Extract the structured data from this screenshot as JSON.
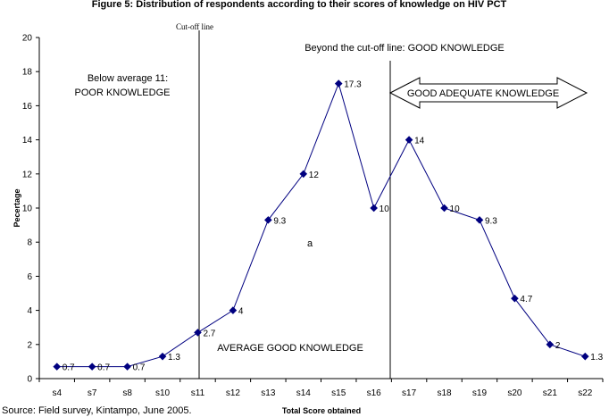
{
  "chart_data": {
    "type": "line",
    "title": "Figure 5: Distribution of respondents according to their scores of knowledge on HIV PCT",
    "xlabel": "Total Score obtained",
    "ylabel": "Pecertage",
    "ylim": [
      0,
      20
    ],
    "y_ticks": [
      "0",
      "2",
      "4",
      "6",
      "8",
      "10",
      "12",
      "14",
      "16",
      "18",
      "20"
    ],
    "categories": [
      "s4",
      "s7",
      "s8",
      "s10",
      "s11",
      "s12",
      "s13",
      "s14",
      "s15",
      "s16",
      "s17",
      "s18",
      "s19",
      "s20",
      "s21",
      "s22"
    ],
    "series": [
      {
        "name": "Percentage",
        "values": [
          0.7,
          0.7,
          0.7,
          1.3,
          2.7,
          4,
          9.3,
          12,
          17.3,
          10,
          14,
          10,
          9.3,
          4.7,
          2,
          1.3
        ],
        "labels": [
          "0.7",
          "0.7",
          "0.7",
          "1.3",
          "2.7",
          "4",
          "9.3",
          "12",
          "17.3",
          "10",
          "14",
          "10",
          "9.3",
          "4.7",
          "2",
          "1.3"
        ],
        "color": "#000080"
      }
    ],
    "grid": false,
    "cutoff_line_label": "Cut-off line",
    "annotations": {
      "below_line1": "Below average 11:",
      "below_line2": "POOR KNOWLEDGE",
      "beyond": "Beyond the cut-off line: GOOD KNOWLEDGE",
      "arrow_text": "GOOD ADEQUATE KNOWLEDGE",
      "average": "AVERAGE GOOD KNOWLEDGE",
      "stray": "a"
    },
    "source": "Source: Field survey, Kintampo, June 2005."
  }
}
